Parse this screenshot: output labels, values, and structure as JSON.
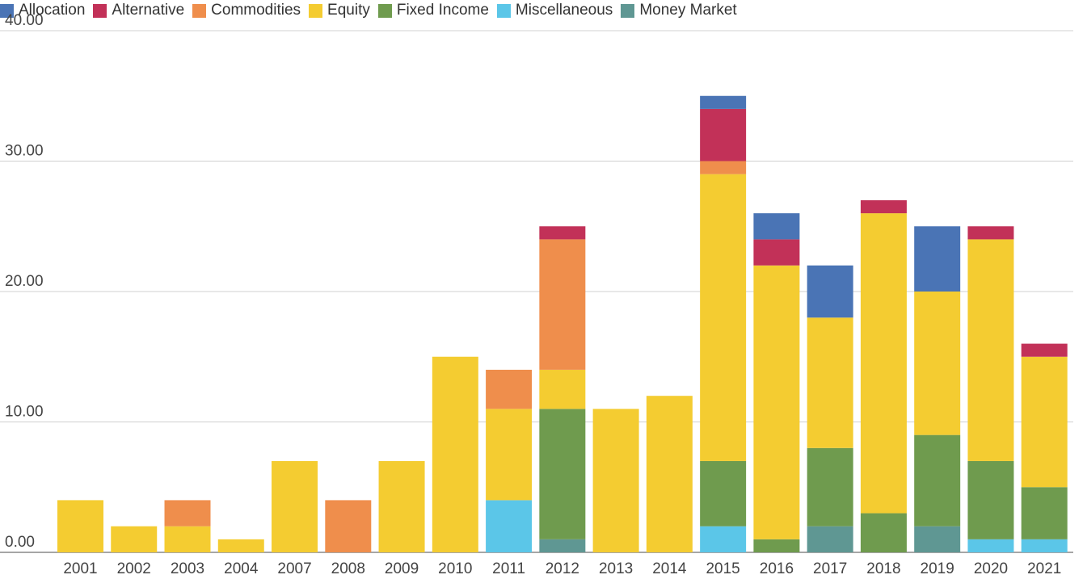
{
  "chart_data": {
    "type": "bar",
    "stacked": true,
    "title": "",
    "xlabel": "",
    "ylabel": "",
    "ylim": [
      0,
      40
    ],
    "yticks": [
      "0.00",
      "10.00",
      "20.00",
      "30.00",
      "40.00"
    ],
    "grid": true,
    "legend_position": "top-left",
    "categories": [
      "2001",
      "2002",
      "2003",
      "2004",
      "2007",
      "2008",
      "2009",
      "2010",
      "2011",
      "2012",
      "2013",
      "2014",
      "2015",
      "2016",
      "2017",
      "2018",
      "2019",
      "2020",
      "2021"
    ],
    "series": [
      {
        "name": "Money Market",
        "color": "#5f9793",
        "values": [
          0,
          0,
          0,
          0,
          0,
          0,
          0,
          0,
          0,
          1,
          0,
          0,
          0,
          0,
          2,
          0,
          2,
          0,
          0
        ]
      },
      {
        "name": "Miscellaneous",
        "color": "#5bc6e8",
        "values": [
          0,
          0,
          0,
          0,
          0,
          0,
          0,
          0,
          4,
          0,
          0,
          0,
          2,
          0,
          0,
          0,
          0,
          1,
          1
        ]
      },
      {
        "name": "Fixed Income",
        "color": "#6f9b4e",
        "values": [
          0,
          0,
          0,
          0,
          0,
          0,
          0,
          0,
          0,
          10,
          0,
          0,
          5,
          1,
          6,
          3,
          7,
          6,
          4
        ]
      },
      {
        "name": "Equity",
        "color": "#f4cc31",
        "values": [
          4,
          2,
          2,
          1,
          7,
          0,
          7,
          15,
          7,
          3,
          11,
          12,
          22,
          21,
          10,
          23,
          11,
          17,
          10
        ]
      },
      {
        "name": "Commodities",
        "color": "#ef8e4c",
        "values": [
          0,
          0,
          2,
          0,
          0,
          4,
          0,
          0,
          3,
          10,
          0,
          0,
          1,
          0,
          0,
          0,
          0,
          0,
          0
        ]
      },
      {
        "name": "Alternative",
        "color": "#c23158",
        "values": [
          0,
          0,
          0,
          0,
          0,
          0,
          0,
          0,
          0,
          1,
          0,
          0,
          4,
          2,
          0,
          1,
          0,
          1,
          1
        ]
      },
      {
        "name": "Allocation",
        "color": "#4a74b5",
        "values": [
          0,
          0,
          0,
          0,
          0,
          0,
          0,
          0,
          0,
          0,
          0,
          0,
          1,
          2,
          4,
          0,
          5,
          0,
          0
        ]
      }
    ],
    "legend_order": [
      "Allocation",
      "Alternative",
      "Commodities",
      "Equity",
      "Fixed Income",
      "Miscellaneous",
      "Money Market"
    ]
  }
}
